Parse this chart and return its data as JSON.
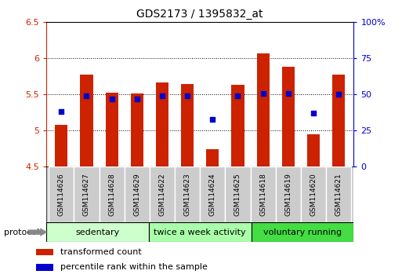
{
  "title": "GDS2173 / 1395832_at",
  "samples": [
    "GSM114626",
    "GSM114627",
    "GSM114628",
    "GSM114629",
    "GSM114622",
    "GSM114623",
    "GSM114624",
    "GSM114625",
    "GSM114618",
    "GSM114619",
    "GSM114620",
    "GSM114621"
  ],
  "bar_values": [
    5.08,
    5.78,
    5.53,
    5.52,
    5.67,
    5.64,
    4.74,
    5.63,
    6.07,
    5.88,
    4.95,
    5.78
  ],
  "dot_values": [
    38,
    49,
    47,
    47,
    49,
    49,
    33,
    49,
    51,
    51,
    37,
    50
  ],
  "ylim": [
    4.5,
    6.5
  ],
  "y2lim": [
    0,
    100
  ],
  "yticks": [
    4.5,
    5.0,
    5.5,
    6.0,
    6.5
  ],
  "ytick_labels": [
    "4.5",
    "5",
    "5.5",
    "6",
    "6.5"
  ],
  "y2ticks": [
    0,
    25,
    50,
    75,
    100
  ],
  "y2tick_labels": [
    "0",
    "25",
    "50",
    "75",
    "100%"
  ],
  "bar_color": "#cc2200",
  "dot_color": "#0000cc",
  "bar_bottom": 4.5,
  "groups": [
    {
      "label": "sedentary",
      "start": 0,
      "end": 4,
      "color": "#ccffcc"
    },
    {
      "label": "twice a week activity",
      "start": 4,
      "end": 8,
      "color": "#aaffaa"
    },
    {
      "label": "voluntary running",
      "start": 8,
      "end": 12,
      "color": "#44dd44"
    }
  ],
  "protocol_label": "protocol",
  "legend_items": [
    {
      "color": "#cc2200",
      "label": "transformed count"
    },
    {
      "color": "#0000cc",
      "label": "percentile rank within the sample"
    }
  ],
  "bg_color": "#ffffff",
  "plot_bg": "#ffffff",
  "tick_label_color_left": "#cc2200",
  "tick_label_color_right": "#0000cc",
  "label_box_color": "#cccccc",
  "bar_width": 0.5
}
